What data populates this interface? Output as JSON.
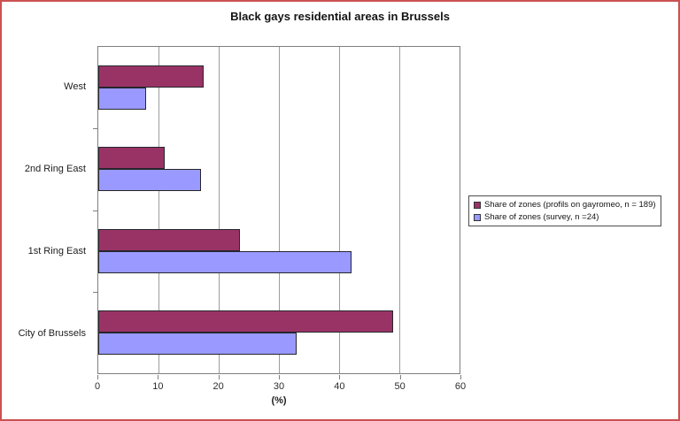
{
  "page": {
    "frame_border_color": "#cb5151",
    "background_color": "#ffffff"
  },
  "chart_data": {
    "type": "bar",
    "orientation": "horizontal",
    "title": "Black gays residential areas in Brussels",
    "xlabel": "(%)",
    "ylabel": "",
    "xlim": [
      0,
      60
    ],
    "xticks": [
      0,
      10,
      20,
      30,
      40,
      50,
      60
    ],
    "grid": true,
    "legend_position": "right",
    "categories": [
      "West",
      "2nd Ring East",
      "1st Ring East",
      "City of Brussels"
    ],
    "series": [
      {
        "name": "Share of zones (profils on gayromeo, n = 189)",
        "color": "#993366",
        "values": [
          17.5,
          11,
          23.5,
          49
        ]
      },
      {
        "name": "Share of zones (survey, n =24)",
        "color": "#9999FF",
        "values": [
          8,
          17,
          42,
          33
        ]
      }
    ]
  }
}
